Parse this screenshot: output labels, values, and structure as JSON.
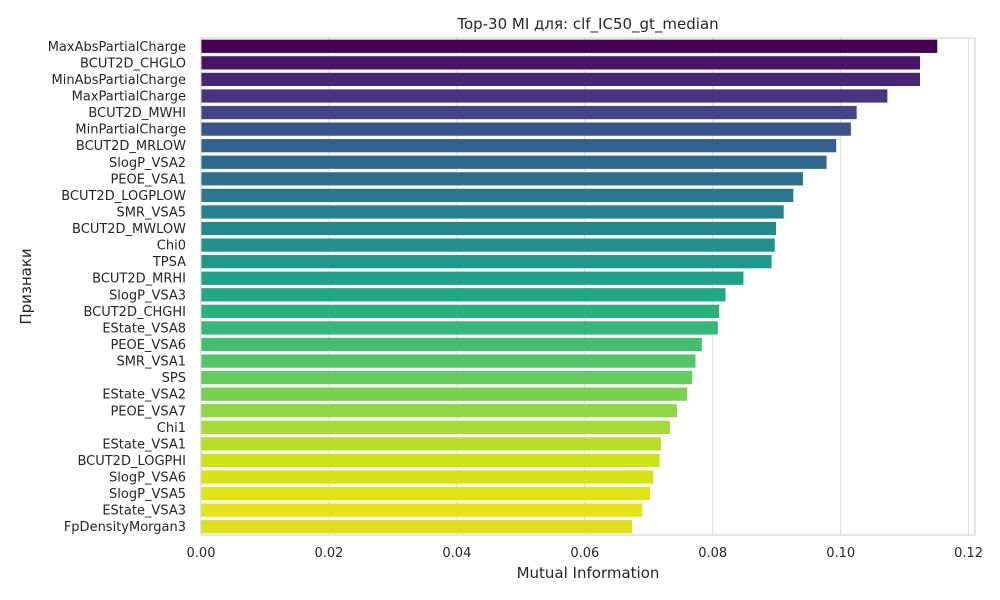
{
  "chart_data": {
    "type": "bar",
    "orientation": "horizontal",
    "title": "Top-30 MI для: clf_IC50_gt_median",
    "xlabel": "Mutual Information",
    "ylabel": "Признаки",
    "xlim": [
      0,
      0.121
    ],
    "xticks": [
      0.0,
      0.02,
      0.04,
      0.06,
      0.08,
      0.1,
      0.12
    ],
    "xtick_labels": [
      "0.00",
      "0.02",
      "0.04",
      "0.06",
      "0.08",
      "0.10",
      "0.12"
    ],
    "grid": true,
    "colormap": "viridis",
    "categories": [
      "MaxAbsPartialCharge",
      "BCUT2D_CHGLO",
      "MinAbsPartialCharge",
      "MaxPartialCharge",
      "BCUT2D_MWHI",
      "MinPartialCharge",
      "BCUT2D_MRLOW",
      "SlogP_VSA2",
      "PEOE_VSA1",
      "BCUT2D_LOGPLOW",
      "SMR_VSA5",
      "BCUT2D_MWLOW",
      "Chi0",
      "TPSA",
      "BCUT2D_MRHI",
      "SlogP_VSA3",
      "BCUT2D_CHGHI",
      "EState_VSA8",
      "PEOE_VSA6",
      "SMR_VSA1",
      "SPS",
      "EState_VSA2",
      "PEOE_VSA7",
      "Chi1",
      "EState_VSA1",
      "BCUT2D_LOGPHI",
      "SlogP_VSA6",
      "SlogP_VSA5",
      "EState_VSA3",
      "FpDensityMorgan3"
    ],
    "values": [
      0.1151,
      0.1124,
      0.1124,
      0.1073,
      0.1025,
      0.1016,
      0.0993,
      0.0978,
      0.0941,
      0.0926,
      0.0911,
      0.0899,
      0.0897,
      0.0892,
      0.0848,
      0.082,
      0.081,
      0.0808,
      0.0783,
      0.0773,
      0.0768,
      0.076,
      0.0744,
      0.0733,
      0.0719,
      0.0717,
      0.0707,
      0.0702,
      0.069,
      0.0674
    ],
    "colors": [
      "#440154",
      "#471365",
      "#482475",
      "#463480",
      "#414487",
      "#3b528b",
      "#355f8d",
      "#31688e",
      "#2d708e",
      "#2a788e",
      "#26828e",
      "#23898e",
      "#21918c",
      "#1f988b",
      "#1fa088",
      "#22a884",
      "#2ab07f",
      "#35b779",
      "#44bf70",
      "#54c568",
      "#65cb5e",
      "#7ad151",
      "#8fd744",
      "#a5db36",
      "#b8de29",
      "#cde11d",
      "#d8e219",
      "#e0e418",
      "#e5e419",
      "#dede1f"
    ]
  }
}
